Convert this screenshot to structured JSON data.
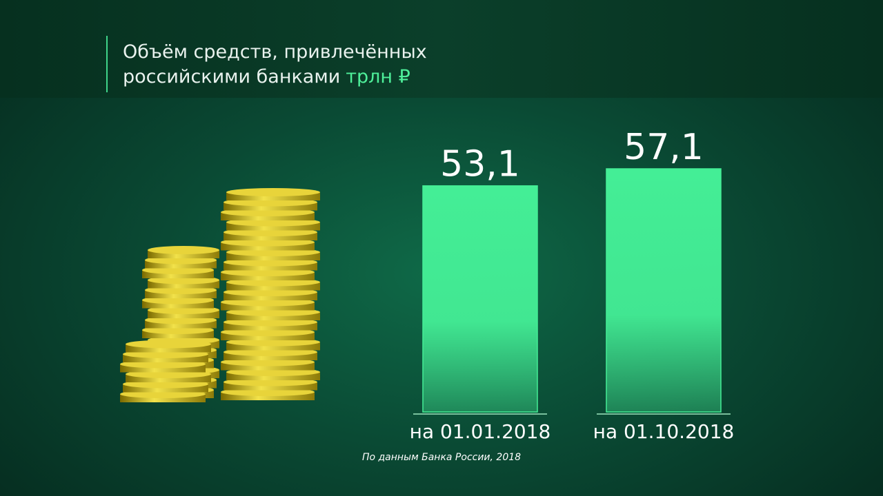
{
  "chart_data": {
    "type": "bar",
    "title": "Объём средств, привлечённых российскими банками",
    "unit": "трлн ₽",
    "categories": [
      "на 01.01.2018",
      "на 01.10.2018"
    ],
    "values": [
      53.1,
      57.1
    ],
    "value_labels": [
      "53,1",
      "57,1"
    ],
    "color": "#44ee96",
    "source": "По данным Банка России, 2018"
  }
}
